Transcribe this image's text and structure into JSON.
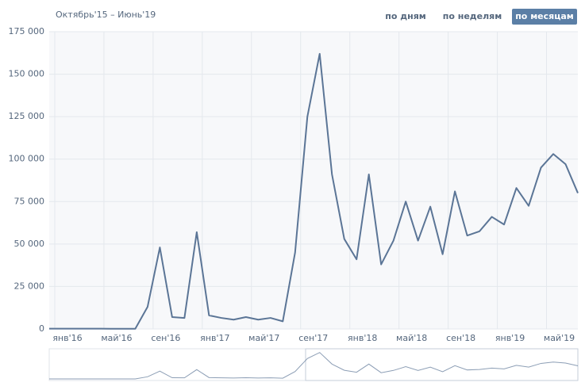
{
  "chart_data": {
    "type": "line",
    "title": "Октябрь'15 – Июнь'19",
    "buttons": [
      "по дням",
      "по неделям",
      "по месяцам"
    ],
    "active_button": 2,
    "categories": [
      null,
      null,
      "янв'16",
      null,
      null,
      null,
      "май'16",
      null,
      null,
      null,
      "сен'16",
      null,
      null,
      null,
      "янв'17",
      null,
      null,
      null,
      "май'17",
      null,
      null,
      null,
      "сен'17",
      null,
      null,
      null,
      "янв'18",
      null,
      null,
      null,
      "май'18",
      null,
      null,
      null,
      "сен'18",
      null,
      null,
      null,
      "янв'19",
      null,
      null,
      null,
      "май'19",
      null
    ],
    "series": [
      {
        "color": "#5b7596",
        "values": [
          200,
          200,
          200,
          200,
          200,
          100,
          100,
          100,
          13000,
          48000,
          7000,
          6500,
          57000,
          8000,
          6500,
          5500,
          7000,
          5500,
          6500,
          4500,
          45000,
          125000,
          162000,
          91000,
          53000,
          41000,
          91000,
          38000,
          52000,
          75000,
          52000,
          72000,
          44000,
          81000,
          55000,
          57500,
          66000,
          61500,
          83000,
          72500,
          95000,
          103000,
          97000,
          80000
        ]
      }
    ],
    "ylim": [
      0,
      175000
    ],
    "yticks": [
      0,
      {
        "value": 25000,
        "label": "25 000"
      },
      {
        "value": 50000,
        "label": "50 000"
      },
      {
        "value": 75000,
        "label": "75 000"
      },
      {
        "value": 100000,
        "label": "100 000"
      },
      {
        "value": 125000,
        "label": "125 000"
      },
      {
        "value": 150000,
        "label": "150 000"
      },
      {
        "value": 175000,
        "label": "175 000"
      }
    ],
    "grid": true
  }
}
